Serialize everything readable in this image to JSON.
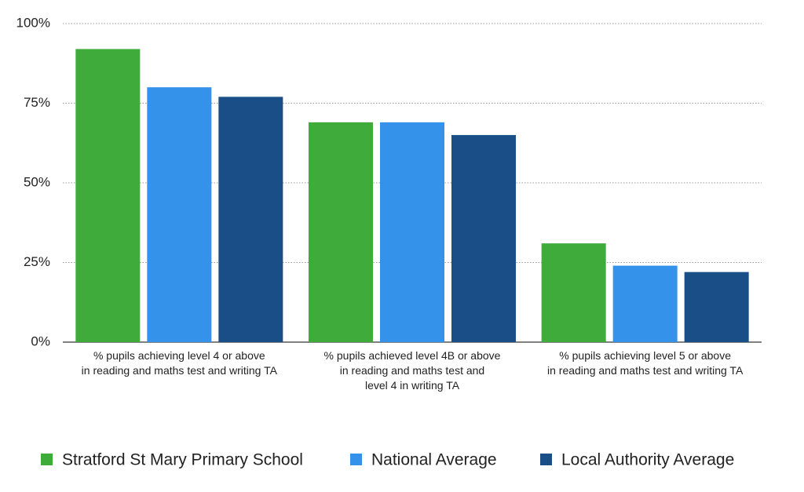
{
  "chart_data": {
    "type": "bar",
    "categories": [
      "% pupils achieving level 4 or above\nin reading and maths test and writing TA",
      "% pupils achieved level 4B or above\nin reading and maths test and\nlevel 4 in writing TA",
      "% pupils achieving level 5 or above\nin reading and maths test and writing TA"
    ],
    "series": [
      {
        "name": "Stratford St Mary Primary School",
        "color": "#3fab3b",
        "values": [
          92,
          69,
          31
        ]
      },
      {
        "name": "National Average",
        "color": "#3592ea",
        "values": [
          80,
          69,
          24
        ]
      },
      {
        "name": "Local Authority Average",
        "color": "#1a4e86",
        "values": [
          77,
          65,
          22
        ]
      }
    ],
    "ylim": [
      0,
      100
    ],
    "yticks": [
      {
        "value": 0,
        "label": "0%"
      },
      {
        "value": 25,
        "label": "25%"
      },
      {
        "value": 50,
        "label": "50%"
      },
      {
        "value": 75,
        "label": "75%"
      },
      {
        "value": 100,
        "label": "100%"
      }
    ],
    "grid": true,
    "legend": "bottom"
  }
}
